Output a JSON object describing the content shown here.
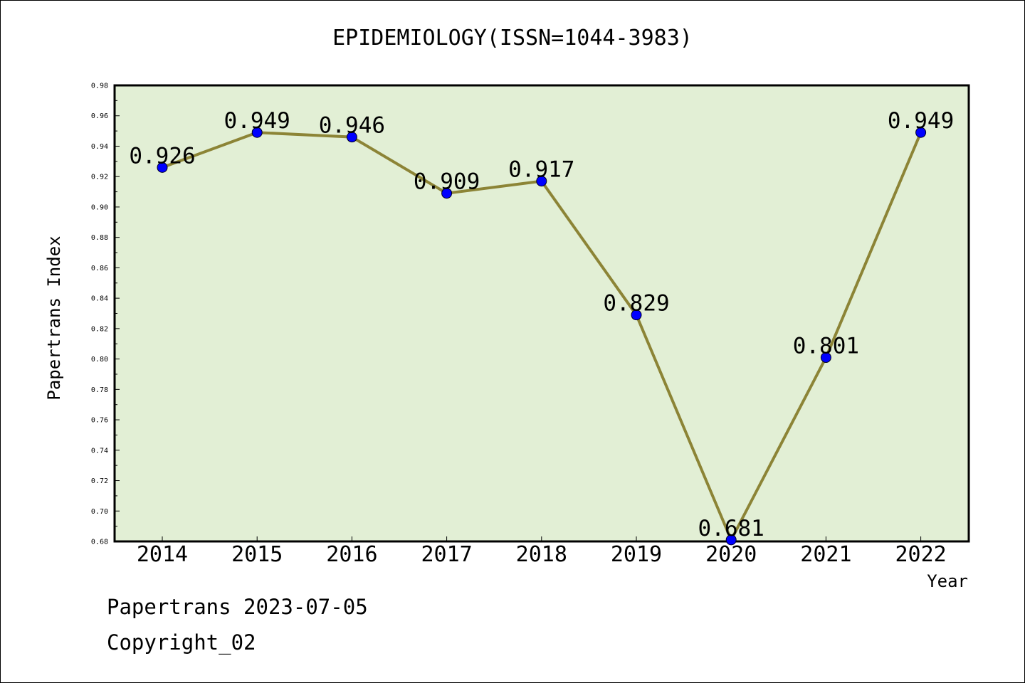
{
  "chart_data": {
    "type": "line",
    "title": "EPIDEMIOLOGY(ISSN=1044-3983)",
    "xlabel": "Year",
    "ylabel": "Papertrans Index",
    "categories": [
      "2014",
      "2015",
      "2016",
      "2017",
      "2018",
      "2019",
      "2020",
      "2021",
      "2022"
    ],
    "series": [
      {
        "values": [
          0.926,
          0.949,
          0.946,
          0.909,
          0.917,
          0.829,
          0.681,
          0.801,
          0.949
        ]
      }
    ],
    "data_labels": [
      "0.926",
      "0.949",
      "0.946",
      "0.909",
      "0.917",
      "0.829",
      "0.681",
      "0.801",
      "0.949"
    ],
    "ylim": [
      0.68,
      0.98
    ],
    "yticks": [
      "0.68",
      "0.70",
      "0.72",
      "0.74",
      "0.76",
      "0.78",
      "0.80",
      "0.82",
      "0.84",
      "0.86",
      "0.88",
      "0.90",
      "0.92",
      "0.94",
      "0.96",
      "0.98"
    ],
    "grid": false,
    "colors": {
      "plot_background": "#e2efd5",
      "line": "#8c8436",
      "marker": "#0000ff"
    }
  },
  "footer": {
    "date_line": "Papertrans 2023-07-05",
    "copyright": "Copyright_02"
  }
}
